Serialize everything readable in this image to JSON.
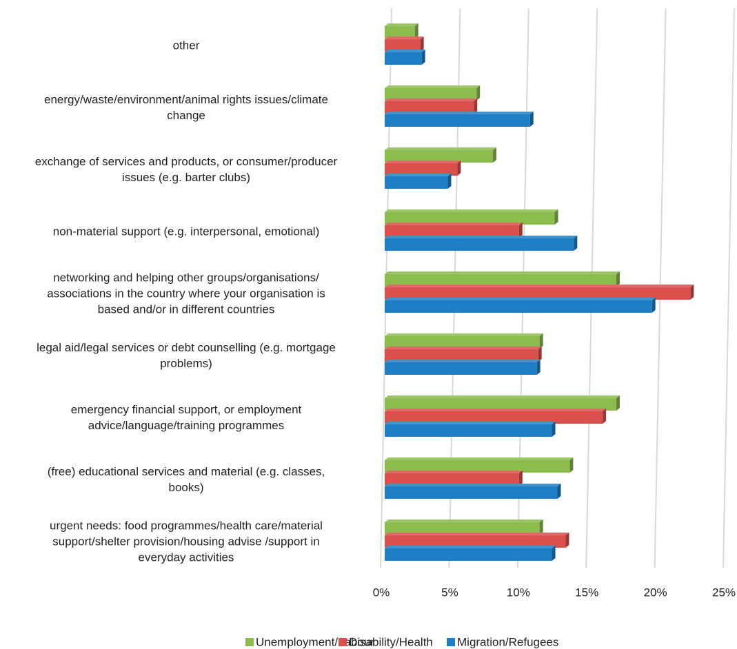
{
  "chart_data": {
    "type": "bar3d_horizontal",
    "categories": [
      "other",
      "energy/waste/environment/animal rights issues/climate\nchange",
      "exchange of services and products, or consumer/producer\nissues (e.g. barter clubs)",
      "non-material support (e.g. interpersonal, emotional)",
      "networking and helping other groups/organisations/\nassociations in the country where your organisation is\nbased and/or in different countries",
      "legal aid/legal services or debt counselling (e.g. mortgage\nproblems)",
      "emergency financial support, or employment\nadvice/language/training programmes",
      "(free) educational services and material (e.g. classes,\nbooks)",
      "urgent needs: food programmes/health care/material\nsupport/shelter provision/housing advise /support in\neveryday activities"
    ],
    "series": [
      {
        "name": "Unemployment/Labour",
        "color": "#8cbb4e",
        "values": [
          2.2,
          6.7,
          7.9,
          12.4,
          16.9,
          11.3,
          16.9,
          13.5,
          11.3
        ]
      },
      {
        "name": "Disability/Health",
        "color": "#d9504c",
        "values": [
          2.6,
          6.5,
          5.3,
          9.8,
          22.3,
          11.2,
          15.9,
          9.8,
          13.2
        ]
      },
      {
        "name": "Migration/Refugees",
        "color": "#1f7fc4",
        "values": [
          2.7,
          10.6,
          4.6,
          13.8,
          19.5,
          11.1,
          12.2,
          12.6,
          12.2
        ]
      }
    ],
    "xlim": [
      0,
      25
    ],
    "xticks": [
      {
        "value": 0,
        "label": "0%"
      },
      {
        "value": 5,
        "label": "5%"
      },
      {
        "value": 10,
        "label": "10%"
      },
      {
        "value": 15,
        "label": "15%"
      },
      {
        "value": 20,
        "label": "20%"
      },
      {
        "value": 25,
        "label": "25%"
      }
    ],
    "grid": true,
    "legend": "bottom"
  }
}
